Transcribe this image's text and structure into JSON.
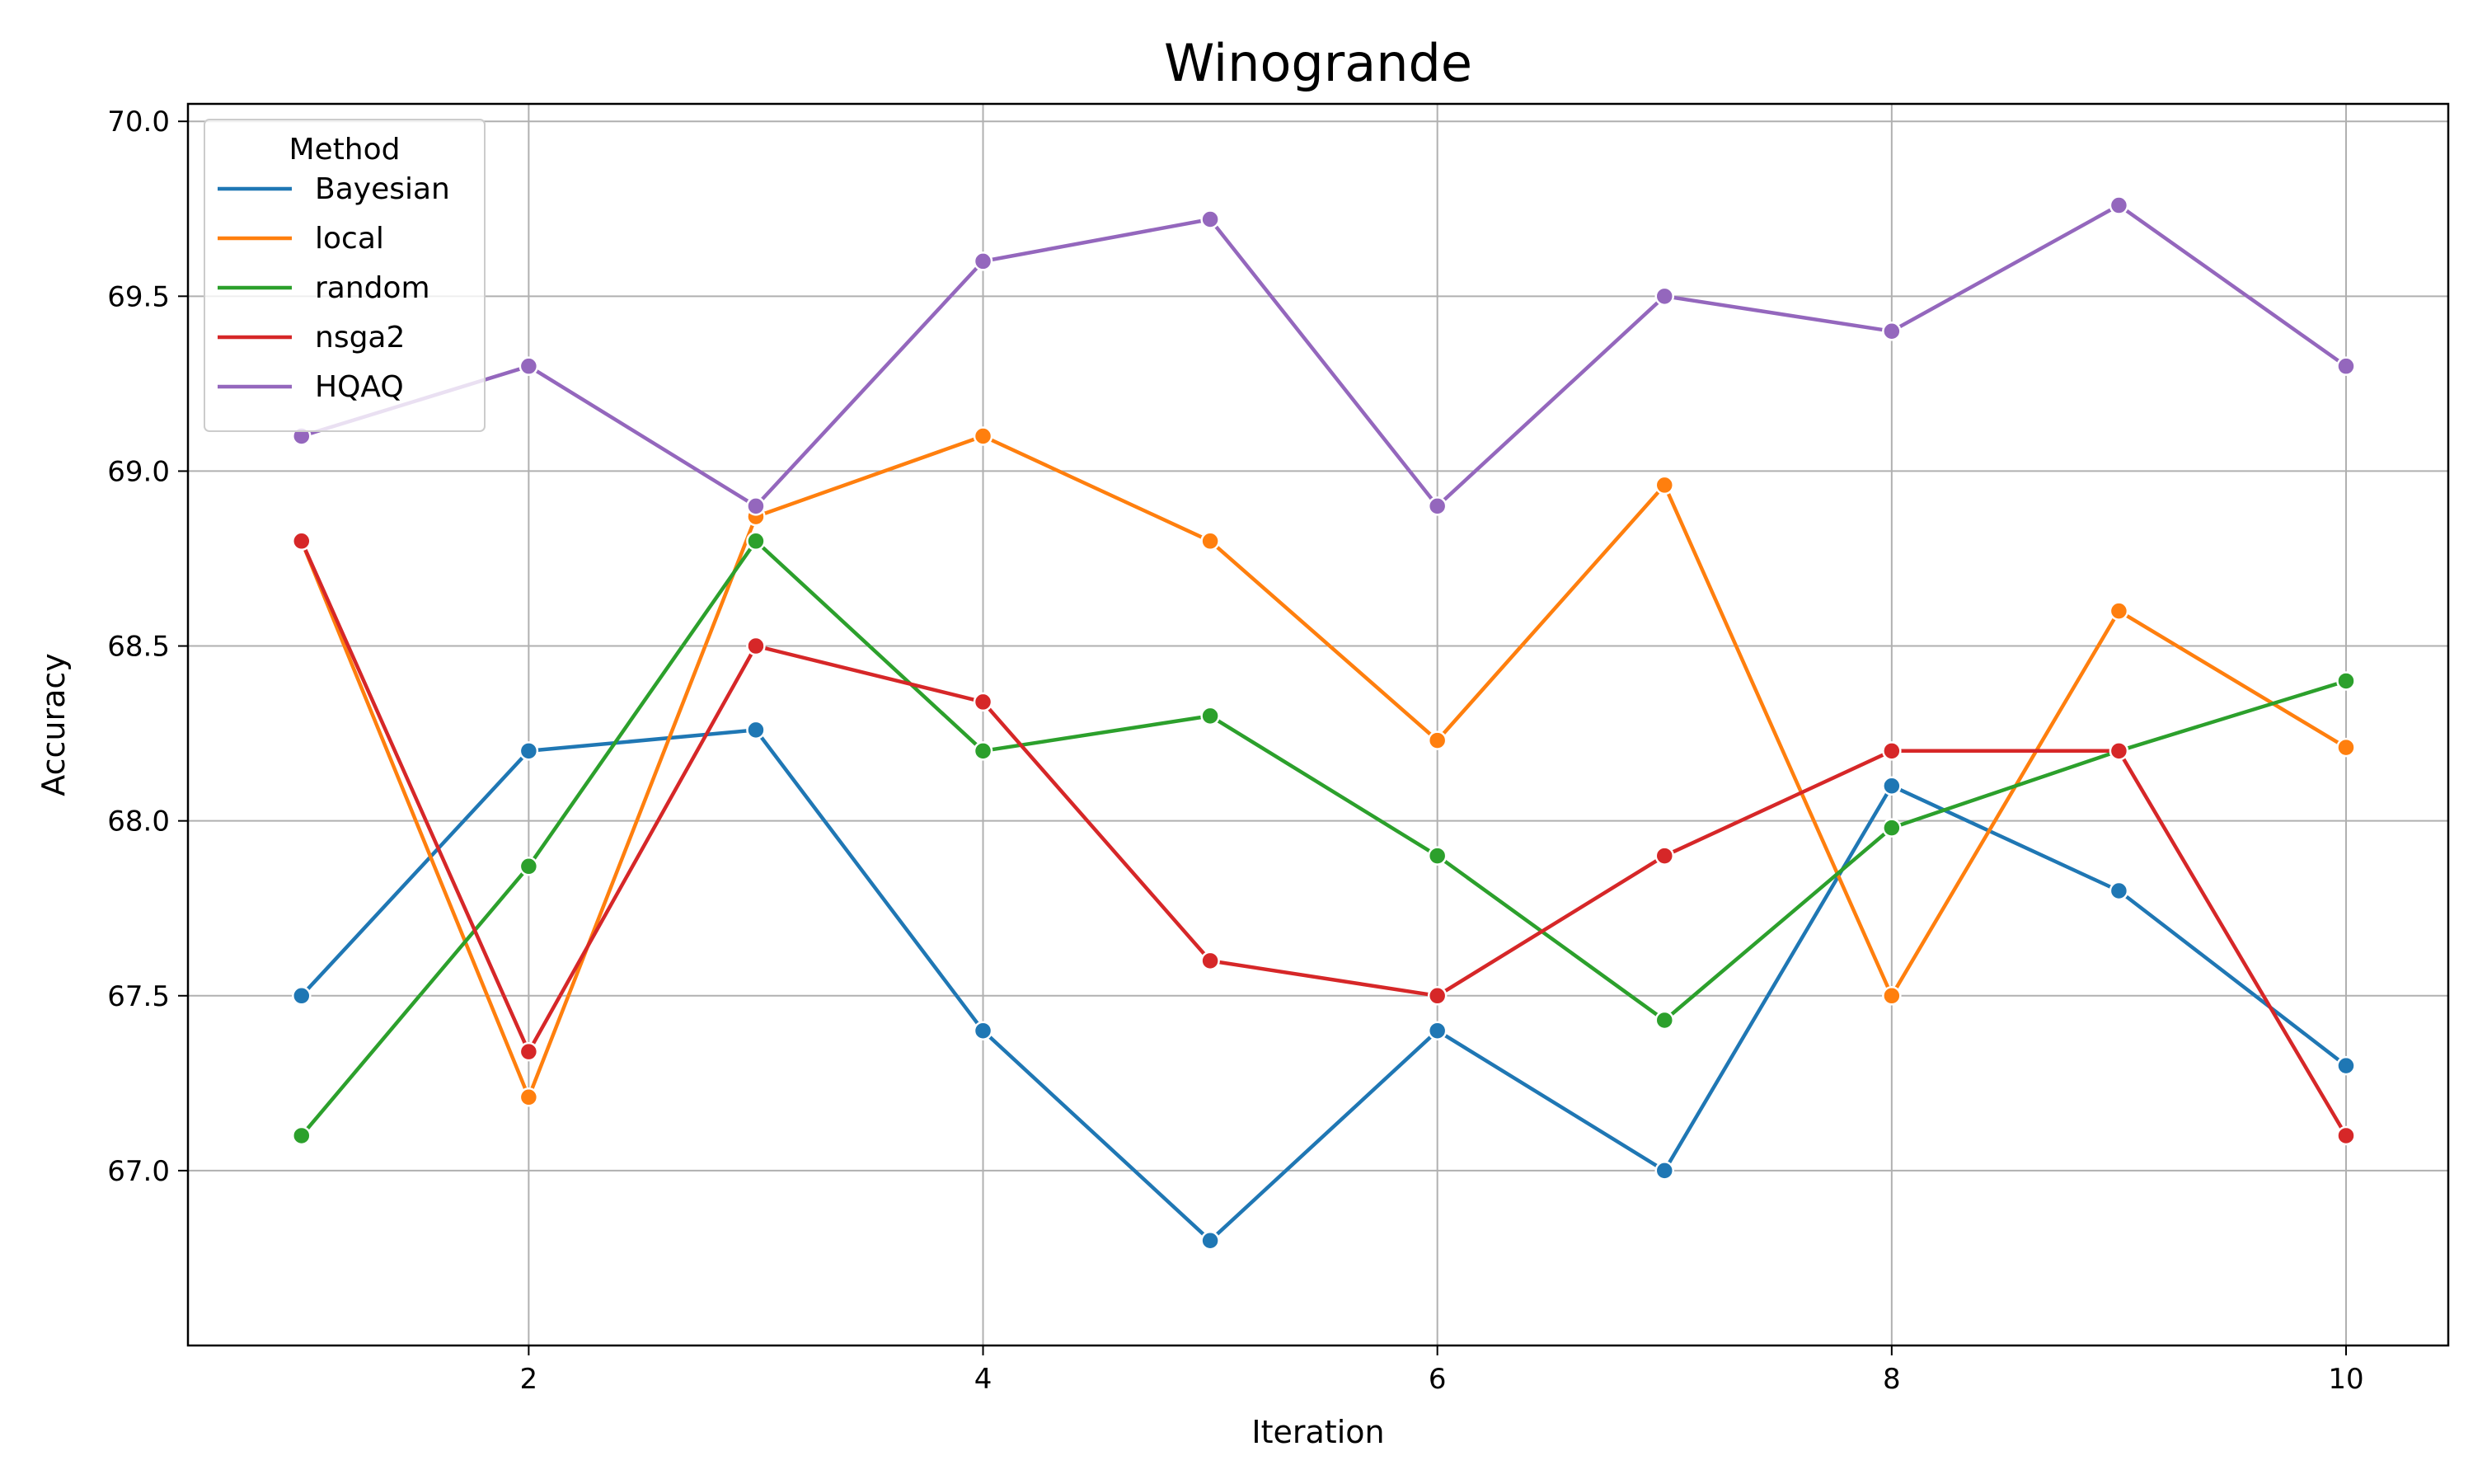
{
  "chart_data": {
    "type": "line",
    "title": "Winogrande",
    "xlabel": "Iteration",
    "ylabel": "Accuracy",
    "x": [
      1,
      2,
      3,
      4,
      5,
      6,
      7,
      8,
      9,
      10
    ],
    "xlim": [
      0.5,
      10.45
    ],
    "ylim": [
      66.5,
      70.05
    ],
    "xticks": [
      2,
      4,
      6,
      8,
      10
    ],
    "xtick_labels": [
      "2",
      "4",
      "6",
      "8",
      "10"
    ],
    "yticks": [
      67.0,
      67.5,
      68.0,
      68.5,
      69.0,
      69.5,
      70.0
    ],
    "ytick_labels": [
      "67.0",
      "67.5",
      "68.0",
      "68.5",
      "69.0",
      "69.5",
      "70.0"
    ],
    "grid": true,
    "legend": {
      "title": "Method",
      "placement": "top-left"
    },
    "series": [
      {
        "name": "Bayesian",
        "color": "#1f77b4",
        "values": [
          67.5,
          68.2,
          68.26,
          67.4,
          66.8,
          67.4,
          67.0,
          68.1,
          67.8,
          67.3
        ]
      },
      {
        "name": "local",
        "color": "#ff7f0e",
        "values": [
          68.8,
          67.21,
          68.87,
          69.1,
          68.8,
          68.23,
          68.96,
          67.5,
          68.6,
          68.21
        ]
      },
      {
        "name": "random",
        "color": "#2ca02c",
        "values": [
          67.1,
          67.87,
          68.8,
          68.2,
          68.3,
          67.9,
          67.43,
          67.98,
          68.2,
          68.4
        ]
      },
      {
        "name": "nsga2",
        "color": "#d62728",
        "values": [
          68.8,
          67.34,
          68.5,
          68.34,
          67.6,
          67.5,
          67.9,
          68.2,
          68.2,
          67.1
        ]
      },
      {
        "name": "HQAQ",
        "color": "#9467bd",
        "values": [
          69.1,
          69.3,
          68.9,
          69.6,
          69.72,
          68.9,
          69.5,
          69.4,
          69.76,
          69.3
        ]
      }
    ]
  }
}
